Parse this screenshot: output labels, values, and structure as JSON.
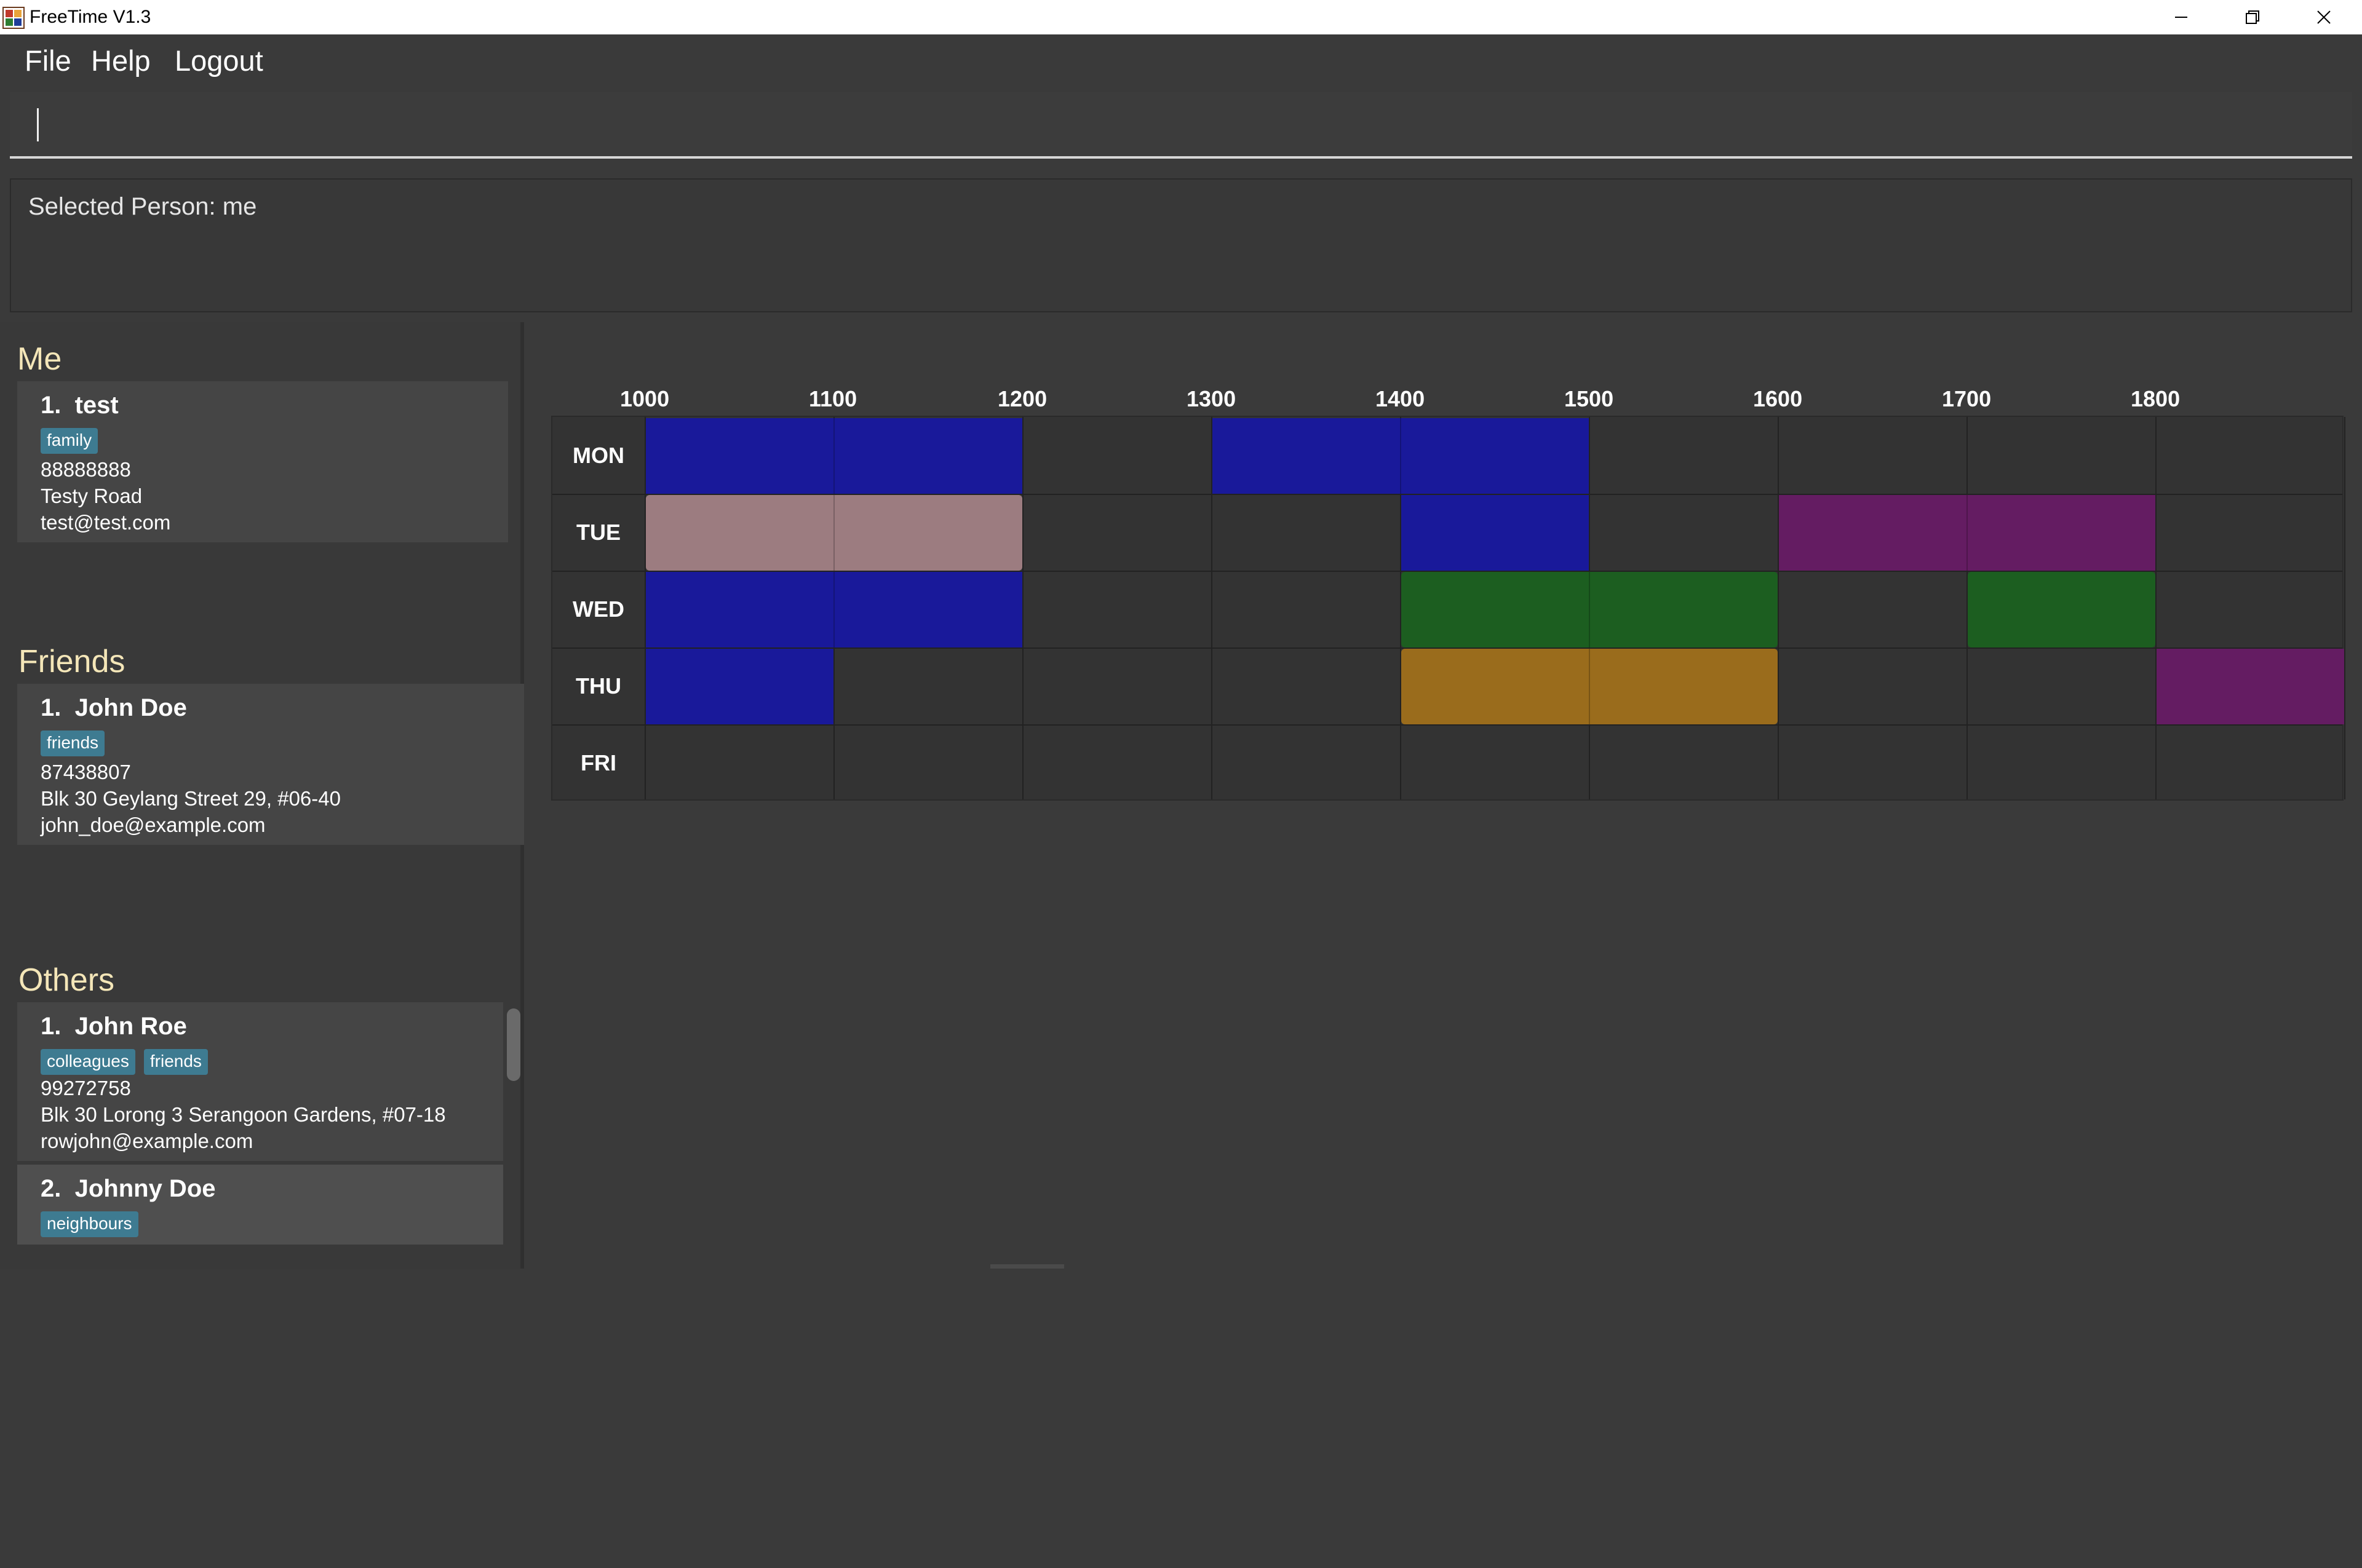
{
  "window": {
    "title": "FreeTime V1.3"
  },
  "menu": {
    "file": "File",
    "help": "Help",
    "logout": "Logout"
  },
  "command": {
    "value": "",
    "placeholder": ""
  },
  "result": {
    "text": "Selected Person: me"
  },
  "sections": {
    "me": {
      "title": "Me",
      "people": [
        {
          "index": "1.",
          "name": "test",
          "tags": [
            "family"
          ],
          "phone": "88888888",
          "address": "Testy Road",
          "email": "test@test.com"
        }
      ]
    },
    "friends": {
      "title": "Friends",
      "people": [
        {
          "index": "1.",
          "name": "John Doe",
          "tags": [
            "friends"
          ],
          "phone": "87438807",
          "address": "Blk 30 Geylang Street 29, #06-40",
          "email": "john_doe@example.com"
        }
      ]
    },
    "others": {
      "title": "Others",
      "people": [
        {
          "index": "1.",
          "name": "John Roe",
          "tags": [
            "colleagues",
            "friends"
          ],
          "phone": "99272758",
          "address": "Blk 30 Lorong 3 Serangoon Gardens, #07-18",
          "email": "rowjohn@example.com"
        },
        {
          "index": "2.",
          "name": "Johnny Doe",
          "tags": [
            "neighbours"
          ]
        }
      ]
    }
  },
  "timetable": {
    "times": [
      "1000",
      "1100",
      "1200",
      "1300",
      "1400",
      "1500",
      "1600",
      "1700",
      "1800"
    ],
    "days": [
      "MON",
      "TUE",
      "WED",
      "THU",
      "FRI"
    ],
    "colors": {
      "blue": "#19199a",
      "pink": "#9c7c80",
      "purple": "#641c62",
      "green": "#1c5e20",
      "orange": "#9a6c1c"
    },
    "blocks": [
      {
        "day": "MON",
        "start": 1000,
        "end": 1200,
        "color": "blue"
      },
      {
        "day": "MON",
        "start": 1300,
        "end": 1500,
        "color": "blue"
      },
      {
        "day": "TUE",
        "start": 1000,
        "end": 1200,
        "color": "pink"
      },
      {
        "day": "TUE",
        "start": 1400,
        "end": 1500,
        "color": "blue"
      },
      {
        "day": "TUE",
        "start": 1600,
        "end": 1800,
        "color": "purple"
      },
      {
        "day": "WED",
        "start": 1000,
        "end": 1200,
        "color": "blue"
      },
      {
        "day": "WED",
        "start": 1400,
        "end": 1600,
        "color": "green"
      },
      {
        "day": "WED",
        "start": 1700,
        "end": 1800,
        "color": "green"
      },
      {
        "day": "THU",
        "start": 1000,
        "end": 1100,
        "color": "blue"
      },
      {
        "day": "THU",
        "start": 1400,
        "end": 1600,
        "color": "orange"
      },
      {
        "day": "THU",
        "start": 1800,
        "end": 1900,
        "color": "purple"
      }
    ]
  }
}
